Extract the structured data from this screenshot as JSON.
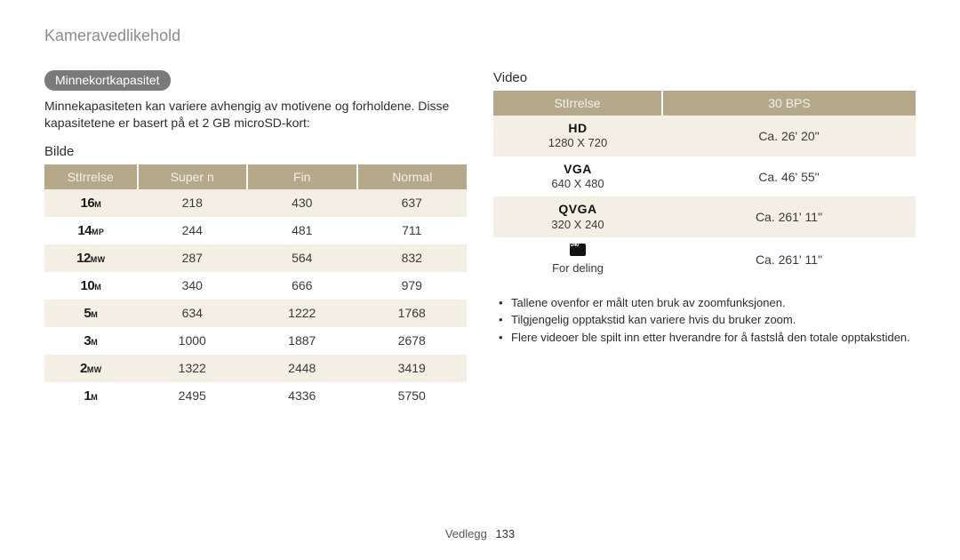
{
  "header": {
    "title": "Kameravedlikehold"
  },
  "section": {
    "tag": "Minnekortkapasitet",
    "intro": "Minnekapasiteten kan variere avhengig av motivene og forholdene. Disse kapasitetene er basert på et 2 GB microSD-kort:"
  },
  "bilde": {
    "title": "Bilde",
    "headers": [
      "StIrrelse",
      "Super n",
      "Fin",
      "Normal"
    ],
    "rows": [
      {
        "big": "16",
        "sub": "M",
        "v": [
          "218",
          "430",
          "637"
        ]
      },
      {
        "big": "14",
        "sub": "MP",
        "v": [
          "244",
          "481",
          "711"
        ]
      },
      {
        "big": "12",
        "sub": "MW",
        "v": [
          "287",
          "564",
          "832"
        ]
      },
      {
        "big": "10",
        "sub": "M",
        "v": [
          "340",
          "666",
          "979"
        ]
      },
      {
        "big": "5",
        "sub": "M",
        "v": [
          "634",
          "1222",
          "1768"
        ]
      },
      {
        "big": "3",
        "sub": "M",
        "v": [
          "1000",
          "1887",
          "2678"
        ]
      },
      {
        "big": "2",
        "sub": "MW",
        "v": [
          "1322",
          "2448",
          "3419"
        ]
      },
      {
        "big": "1",
        "sub": "M",
        "v": [
          "2495",
          "4336",
          "5750"
        ]
      }
    ]
  },
  "video": {
    "title": "Video",
    "headers": [
      "StIrrelse",
      "30 BPS"
    ],
    "rows": [
      {
        "label": "HD",
        "res": "1280 X 720",
        "val": "Ca. 26' 20\""
      },
      {
        "label": "VGA",
        "res": "640 X 480",
        "val": "Ca. 46' 55\""
      },
      {
        "label": "QVGA",
        "res": "320 X 240",
        "val": "Ca. 261' 11\""
      },
      {
        "label": "",
        "res": "For deling",
        "val": "Ca. 261' 11\"",
        "deling": true
      }
    ],
    "notes": [
      "Tallene ovenfor er målt uten bruk av zoomfunksjonen.",
      "Tilgjengelig opptakstid kan variere hvis du bruker zoom.",
      "Flere videoer ble spilt inn etter hverandre for å fastslå den totale opptakstiden."
    ]
  },
  "footer": {
    "section": "Vedlegg",
    "page": "133"
  },
  "colors": {
    "header_bg": "#b6a98b",
    "header_fg": "#f3f0e9",
    "row_alt": "#f3efe4",
    "tag_bg": "#7a7a7a"
  }
}
